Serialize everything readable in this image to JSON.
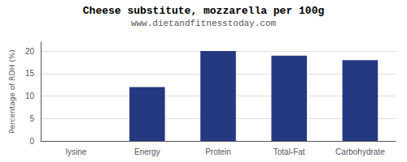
{
  "chart_data": {
    "type": "bar",
    "title": "Cheese substitute, mozzarella per 100g",
    "subtitle": "www.dietandfitnesstoday.com",
    "categories": [
      "lysine",
      "Energy",
      "Protein",
      "Total-Fat",
      "Carbohydrate"
    ],
    "values": [
      0,
      12,
      20,
      19,
      18
    ],
    "color": "#253882",
    "ylabel": "Percentage of RDH (%)",
    "ylim": [
      0,
      22
    ],
    "yticks": [
      0,
      5,
      10,
      15,
      20
    ],
    "grid": true
  }
}
